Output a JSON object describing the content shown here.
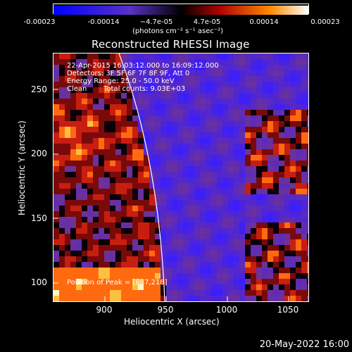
{
  "colorbar": {
    "ticks": [
      "-0.00023",
      "-0.00014",
      "−4.7e-05",
      "4.7e-05",
      "0.00014",
      "0.00023"
    ],
    "units": "(photons cm⁻² s⁻¹ asec⁻²)"
  },
  "title": "Reconstructed RHESSI Image",
  "annotations": {
    "time_range": "22-Apr-2015 16:03:12.000 to 16:09:12.000",
    "detectors": "Detectors: 3F 5F 6F 7F 8F 9F, Att 0",
    "energy": "Energy Range: 25.0 - 50.0 keV",
    "method": "Clean",
    "counts": "Total counts: 9.03E+03",
    "peak": "Position of Peak = [887,218]"
  },
  "axes": {
    "xlabel": "Heliocentric X (arcsec)",
    "ylabel": "Heliocentric Y (arcsec)",
    "xticks": [
      "900",
      "950",
      "1000",
      "1050"
    ],
    "yticks": [
      "250",
      "200",
      "150",
      "100"
    ]
  },
  "datestamp": "20-May-2022 16:00",
  "colors": {
    "background": "#000000",
    "low": "#0000ff",
    "mid_low": "#6a2bb5",
    "zero": "#000000",
    "mid": "#c01010",
    "high": "#ffffff"
  }
}
